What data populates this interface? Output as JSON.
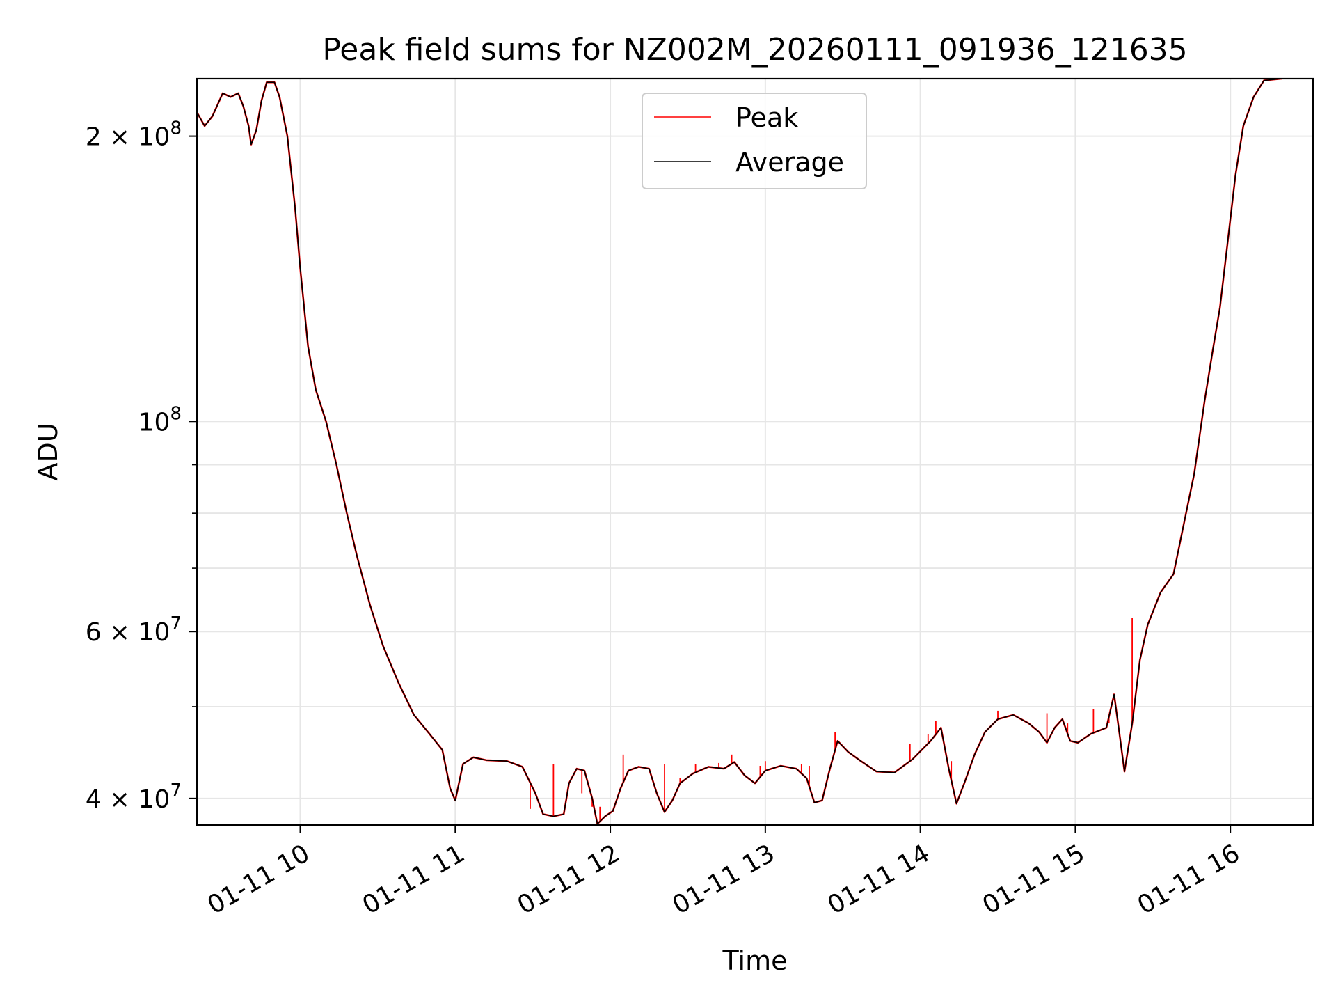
{
  "chart_data": {
    "type": "line",
    "title": "Peak field sums for NZ002M_20260111_091936_121635",
    "xlabel": "Time",
    "ylabel": "ADU",
    "y_scale": "log",
    "ylim": [
      37500000,
      230000000
    ],
    "xlim": [
      "2026-01-11T09:20",
      "2026-01-11T16:32"
    ],
    "grid": true,
    "legend_position": "top-center",
    "x_ticks": [
      {
        "value": "2026-01-11T10:00",
        "label": "01-11 10"
      },
      {
        "value": "2026-01-11T11:00",
        "label": "01-11 11"
      },
      {
        "value": "2026-01-11T12:00",
        "label": "01-11 12"
      },
      {
        "value": "2026-01-11T13:00",
        "label": "01-11 13"
      },
      {
        "value": "2026-01-11T14:00",
        "label": "01-11 14"
      },
      {
        "value": "2026-01-11T15:00",
        "label": "01-11 15"
      },
      {
        "value": "2026-01-11T16:00",
        "label": "01-11 16"
      }
    ],
    "y_major_ticks": [
      {
        "value": 40000000,
        "label_base": "4 × 10",
        "label_exp": "7"
      },
      {
        "value": 60000000,
        "label_base": "6 × 10",
        "label_exp": "7"
      },
      {
        "value": 100000000,
        "label_base": "10",
        "label_exp": "8"
      },
      {
        "value": 200000000,
        "label_base": "2 × 10",
        "label_exp": "8"
      }
    ],
    "y_minor_ticks": [
      50000000,
      70000000,
      80000000,
      90000000
    ],
    "series": [
      {
        "name": "Peak",
        "color": "#ff0000",
        "spikes": [
          {
            "x": "2026-01-11T11:29",
            "y": 39000000
          },
          {
            "x": "2026-01-11T11:38",
            "y": 43500000
          },
          {
            "x": "2026-01-11T11:49",
            "y": 40500000
          },
          {
            "x": "2026-01-11T11:53",
            "y": 39200000
          },
          {
            "x": "2026-01-11T11:56",
            "y": 39200000
          },
          {
            "x": "2026-01-11T12:05",
            "y": 44500000
          },
          {
            "x": "2026-01-11T12:21",
            "y": 43500000
          },
          {
            "x": "2026-01-11T12:27",
            "y": 42000000
          },
          {
            "x": "2026-01-11T12:33",
            "y": 43500000
          },
          {
            "x": "2026-01-11T12:42",
            "y": 43600000
          },
          {
            "x": "2026-01-11T12:47",
            "y": 44500000
          },
          {
            "x": "2026-01-11T12:58",
            "y": 43300000
          },
          {
            "x": "2026-01-11T13:00",
            "y": 43800000
          },
          {
            "x": "2026-01-11T13:14",
            "y": 43500000
          },
          {
            "x": "2026-01-11T13:17",
            "y": 43300000
          },
          {
            "x": "2026-01-11T13:27",
            "y": 47000000
          },
          {
            "x": "2026-01-11T13:36",
            "y": 44000000
          },
          {
            "x": "2026-01-11T13:56",
            "y": 45700000
          },
          {
            "x": "2026-01-11T14:03",
            "y": 46800000
          },
          {
            "x": "2026-01-11T14:06",
            "y": 48300000
          },
          {
            "x": "2026-01-11T14:12",
            "y": 43800000
          },
          {
            "x": "2026-01-11T14:30",
            "y": 49500000
          },
          {
            "x": "2026-01-11T14:49",
            "y": 49200000
          },
          {
            "x": "2026-01-11T14:57",
            "y": 48000000
          },
          {
            "x": "2026-01-11T15:07",
            "y": 49700000
          },
          {
            "x": "2026-01-11T15:13",
            "y": 48000000
          },
          {
            "x": "2026-01-11T15:22",
            "y": 62000000
          }
        ]
      },
      {
        "name": "Average",
        "color": "#000000",
        "points": [
          [
            "2026-01-11T09:20",
            212000000
          ],
          [
            "2026-01-11T09:23",
            205000000
          ],
          [
            "2026-01-11T09:26",
            210000000
          ],
          [
            "2026-01-11T09:30",
            222000000
          ],
          [
            "2026-01-11T09:33",
            220000000
          ],
          [
            "2026-01-11T09:36",
            222000000
          ],
          [
            "2026-01-11T09:38",
            215000000
          ],
          [
            "2026-01-11T09:40",
            205000000
          ],
          [
            "2026-01-11T09:41",
            196000000
          ],
          [
            "2026-01-11T09:43",
            203000000
          ],
          [
            "2026-01-11T09:45",
            218000000
          ],
          [
            "2026-01-11T09:47",
            228000000
          ],
          [
            "2026-01-11T09:50",
            228000000
          ],
          [
            "2026-01-11T09:52",
            220000000
          ],
          [
            "2026-01-11T09:55",
            200000000
          ],
          [
            "2026-01-11T09:58",
            168000000
          ],
          [
            "2026-01-11T10:00",
            145000000
          ],
          [
            "2026-01-11T10:03",
            120000000
          ],
          [
            "2026-01-11T10:06",
            108000000
          ],
          [
            "2026-01-11T10:10",
            100000000
          ],
          [
            "2026-01-11T10:14",
            90000000
          ],
          [
            "2026-01-11T10:18",
            80000000
          ],
          [
            "2026-01-11T10:22",
            72000000
          ],
          [
            "2026-01-11T10:27",
            64000000
          ],
          [
            "2026-01-11T10:32",
            58000000
          ],
          [
            "2026-01-11T10:38",
            53000000
          ],
          [
            "2026-01-11T10:44",
            49000000
          ],
          [
            "2026-01-11T10:50",
            46800000
          ],
          [
            "2026-01-11T10:55",
            45000000
          ],
          [
            "2026-01-11T10:58",
            41000000
          ],
          [
            "2026-01-11T11:00",
            39800000
          ],
          [
            "2026-01-11T11:03",
            43500000
          ],
          [
            "2026-01-11T11:07",
            44200000
          ],
          [
            "2026-01-11T11:12",
            43900000
          ],
          [
            "2026-01-11T11:20",
            43800000
          ],
          [
            "2026-01-11T11:26",
            43200000
          ],
          [
            "2026-01-11T11:31",
            40500000
          ],
          [
            "2026-01-11T11:34",
            38500000
          ],
          [
            "2026-01-11T11:38",
            38300000
          ],
          [
            "2026-01-11T11:42",
            38500000
          ],
          [
            "2026-01-11T11:44",
            41500000
          ],
          [
            "2026-01-11T11:47",
            43000000
          ],
          [
            "2026-01-11T11:50",
            42800000
          ],
          [
            "2026-01-11T11:53",
            40000000
          ],
          [
            "2026-01-11T11:55",
            37600000
          ],
          [
            "2026-01-11T11:58",
            38300000
          ],
          [
            "2026-01-11T12:01",
            38800000
          ],
          [
            "2026-01-11T12:04",
            41000000
          ],
          [
            "2026-01-11T12:07",
            42800000
          ],
          [
            "2026-01-11T12:11",
            43200000
          ],
          [
            "2026-01-11T12:15",
            43000000
          ],
          [
            "2026-01-11T12:18",
            40500000
          ],
          [
            "2026-01-11T12:21",
            38700000
          ],
          [
            "2026-01-11T12:24",
            39800000
          ],
          [
            "2026-01-11T12:27",
            41500000
          ],
          [
            "2026-01-11T12:32",
            42500000
          ],
          [
            "2026-01-11T12:38",
            43200000
          ],
          [
            "2026-01-11T12:44",
            43000000
          ],
          [
            "2026-01-11T12:48",
            43700000
          ],
          [
            "2026-01-11T12:52",
            42300000
          ],
          [
            "2026-01-11T12:56",
            41500000
          ],
          [
            "2026-01-11T13:00",
            42800000
          ],
          [
            "2026-01-11T13:06",
            43300000
          ],
          [
            "2026-01-11T13:12",
            43000000
          ],
          [
            "2026-01-11T13:16",
            42000000
          ],
          [
            "2026-01-11T13:19",
            39600000
          ],
          [
            "2026-01-11T13:22",
            39800000
          ],
          [
            "2026-01-11T13:25",
            43000000
          ],
          [
            "2026-01-11T13:28",
            46000000
          ],
          [
            "2026-01-11T13:32",
            44800000
          ],
          [
            "2026-01-11T13:37",
            43800000
          ],
          [
            "2026-01-11T13:43",
            42700000
          ],
          [
            "2026-01-11T13:50",
            42600000
          ],
          [
            "2026-01-11T13:57",
            44000000
          ],
          [
            "2026-01-11T14:04",
            46000000
          ],
          [
            "2026-01-11T14:08",
            47500000
          ],
          [
            "2026-01-11T14:11",
            43000000
          ],
          [
            "2026-01-11T14:14",
            39500000
          ],
          [
            "2026-01-11T14:17",
            41500000
          ],
          [
            "2026-01-11T14:21",
            44500000
          ],
          [
            "2026-01-11T14:25",
            47000000
          ],
          [
            "2026-01-11T14:30",
            48500000
          ],
          [
            "2026-01-11T14:36",
            49000000
          ],
          [
            "2026-01-11T14:42",
            48000000
          ],
          [
            "2026-01-11T14:46",
            47000000
          ],
          [
            "2026-01-11T14:49",
            45800000
          ],
          [
            "2026-01-11T14:52",
            47500000
          ],
          [
            "2026-01-11T14:55",
            48500000
          ],
          [
            "2026-01-11T14:58",
            46000000
          ],
          [
            "2026-01-11T15:01",
            45800000
          ],
          [
            "2026-01-11T15:06",
            46800000
          ],
          [
            "2026-01-11T15:12",
            47500000
          ],
          [
            "2026-01-11T15:15",
            51500000
          ],
          [
            "2026-01-11T15:17",
            47000000
          ],
          [
            "2026-01-11T15:19",
            42700000
          ],
          [
            "2026-01-11T15:22",
            48000000
          ],
          [
            "2026-01-11T15:25",
            56000000
          ],
          [
            "2026-01-11T15:28",
            61000000
          ],
          [
            "2026-01-11T15:33",
            66000000
          ],
          [
            "2026-01-11T15:38",
            69000000
          ],
          [
            "2026-01-11T15:42",
            78000000
          ],
          [
            "2026-01-11T15:46",
            88000000
          ],
          [
            "2026-01-11T15:50",
            105000000
          ],
          [
            "2026-01-11T15:53",
            118000000
          ],
          [
            "2026-01-11T15:56",
            132000000
          ],
          [
            "2026-01-11T15:59",
            155000000
          ],
          [
            "2026-01-11T16:02",
            182000000
          ],
          [
            "2026-01-11T16:05",
            205000000
          ],
          [
            "2026-01-11T16:09",
            220000000
          ],
          [
            "2026-01-11T16:13",
            229000000
          ],
          [
            "2026-01-11T16:20",
            230000000
          ]
        ]
      }
    ]
  }
}
